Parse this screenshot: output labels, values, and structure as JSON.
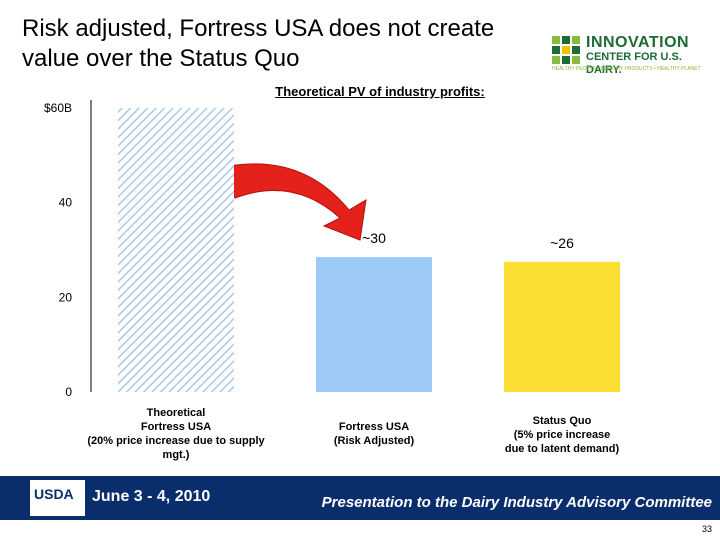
{
  "title_lines": [
    "Risk adjusted, Fortress USA does not create",
    " value over the Status Quo"
  ],
  "logo": {
    "line1": "INNOVATION",
    "line2": "CENTER FOR U.S. DAIRY.",
    "tagline": "HEALTHY PEOPLE • HEALTHY PRODUCTS • HEALTHY PLANET"
  },
  "chart_data": {
    "type": "bar",
    "title": "Theoretical PV of industry profits:",
    "categories": [
      [
        "Theoretical",
        "Fortress USA",
        "(20% price increase due to supply",
        "mgt.)"
      ],
      [
        "Fortress USA",
        "(Risk Adjusted)"
      ],
      [
        "Status Quo",
        "(5% price increase",
        "due to latent demand)"
      ]
    ],
    "values": [
      60,
      28.5,
      27.5
    ],
    "data_labels": [
      "",
      "~30",
      "~26"
    ],
    "ytick_labels": [
      "0",
      "20",
      "40",
      "$60B"
    ],
    "yticks": [
      0,
      20,
      40,
      60
    ],
    "ylim": [
      0,
      60
    ],
    "colors": [
      "hatched",
      "#9ccaf5",
      "#fbe033"
    ],
    "arrow_color": "#e4211b"
  },
  "footer": {
    "usda": "USDA",
    "date": "June 3 - 4, 2010",
    "presentation": "Presentation to the Dairy Industry Advisory Committee",
    "page": "33"
  }
}
